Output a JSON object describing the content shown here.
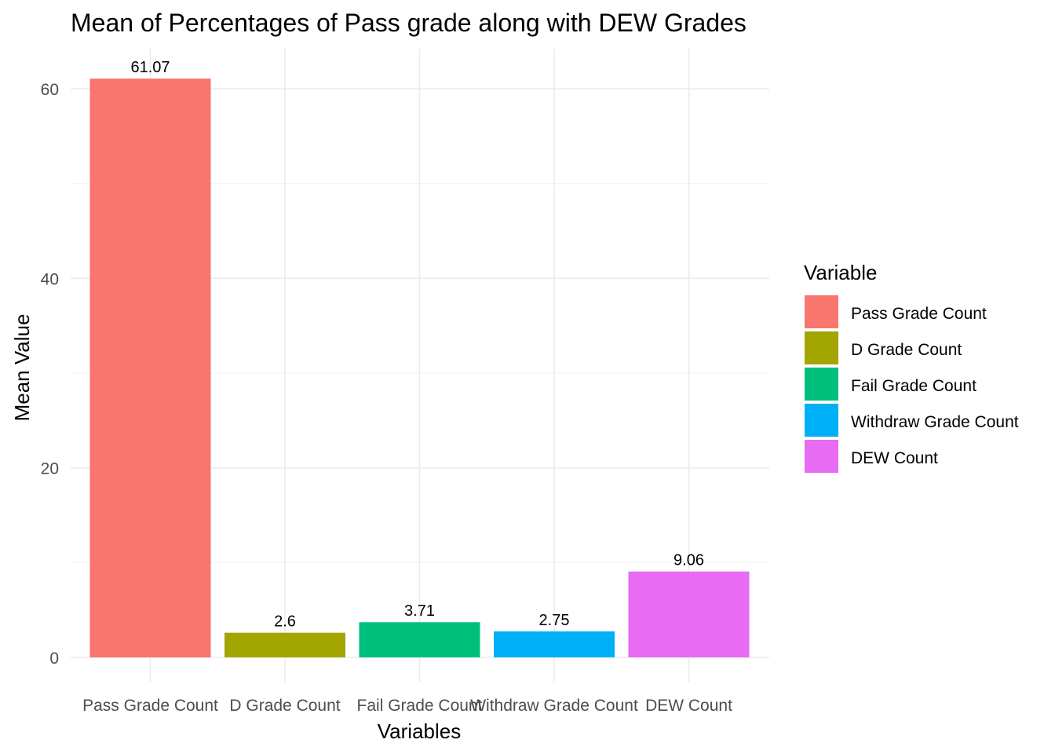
{
  "chart_data": {
    "type": "bar",
    "title": "Mean of Percentages of Pass grade along with DEW Grades",
    "xlabel": "Variables",
    "ylabel": "Mean Value",
    "categories": [
      "Pass Grade Count",
      "D Grade Count",
      "Fail Grade Count",
      "Withdraw Grade Count",
      "DEW Count"
    ],
    "values": [
      61.07,
      2.6,
      3.71,
      2.75,
      9.06
    ],
    "value_labels": [
      "61.07",
      "2.6",
      "3.71",
      "2.75",
      "9.06"
    ],
    "colors": [
      "#F8766D",
      "#A3A500",
      "#00BF7D",
      "#00B0F6",
      "#E76BF3"
    ],
    "ylim": [
      0,
      64
    ],
    "yticks": [
      0,
      20,
      40,
      60
    ],
    "ytick_labels": [
      "0",
      "20",
      "40",
      "60"
    ],
    "grid": true,
    "legend": {
      "title": "Variable",
      "position": "right",
      "entries": [
        "Pass Grade Count",
        "D Grade Count",
        "Fail Grade Count",
        "Withdraw Grade Count",
        "DEW Count"
      ]
    }
  }
}
